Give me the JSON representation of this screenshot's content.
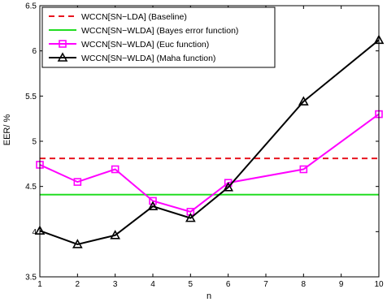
{
  "chart_data": {
    "type": "line",
    "xlabel": "n",
    "ylabel": "EER/ %",
    "xlim": [
      1,
      10
    ],
    "ylim": [
      3.5,
      6.5
    ],
    "xticks": [
      "1",
      "2",
      "3",
      "4",
      "5",
      "6",
      "7",
      "8",
      "9",
      "10"
    ],
    "yticks": [
      "3.5",
      "4",
      "4.5",
      "5",
      "5.5",
      "6",
      "6.5"
    ],
    "grid": false,
    "legend_position": "top-left",
    "series": [
      {
        "name": "WCCN[SN−LDA] (Baseline)",
        "color": "#e8141e",
        "style": "dashed",
        "marker": "none",
        "x": [
          1,
          10
        ],
        "values": [
          4.81,
          4.81
        ]
      },
      {
        "name": "WCCN[SN−WLDA] (Bayes error function)",
        "color": "#22dd22",
        "style": "solid",
        "marker": "none",
        "x": [
          1,
          10
        ],
        "values": [
          4.41,
          4.41
        ]
      },
      {
        "name": "WCCN[SN−WLDA] (Euc function)",
        "color": "#ff00ff",
        "style": "solid",
        "marker": "square",
        "x": [
          1,
          2,
          3,
          4,
          5,
          6,
          8,
          10
        ],
        "values": [
          4.74,
          4.55,
          4.69,
          4.34,
          4.22,
          4.54,
          4.69,
          5.3
        ]
      },
      {
        "name": "WCCN[SN−WLDA] (Maha function)",
        "color": "#000000",
        "style": "solid",
        "marker": "triangle",
        "x": [
          1,
          2,
          3,
          4,
          5,
          6,
          8,
          10
        ],
        "values": [
          4.01,
          3.86,
          3.96,
          4.28,
          4.15,
          4.49,
          5.44,
          6.12
        ]
      }
    ]
  }
}
